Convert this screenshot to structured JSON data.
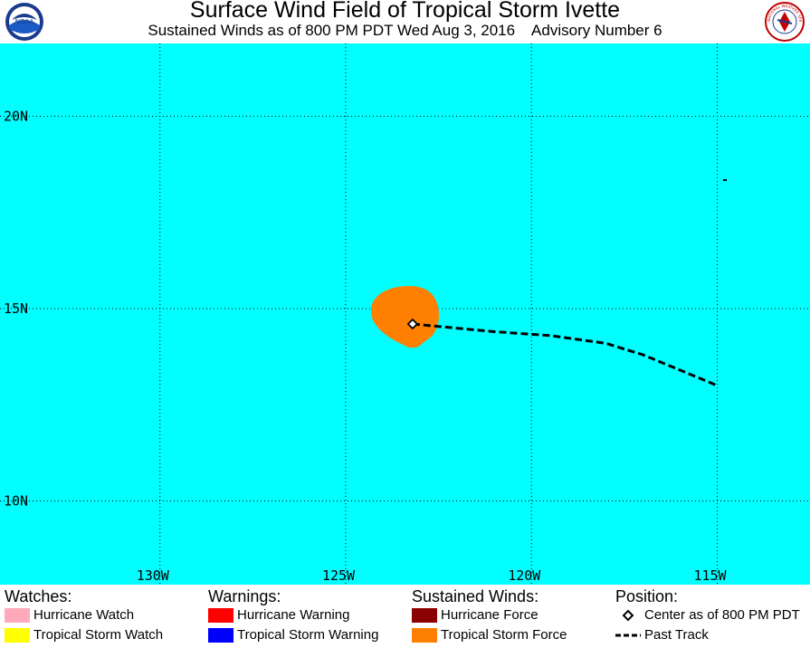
{
  "header": {
    "title": "Surface Wind Field of Tropical Storm Ivette",
    "subtitle": "Sustained Winds as of 800 PM PDT Wed Aug 3, 2016    Advisory Number 6",
    "noaa_logo_text": "NOAA",
    "nws_logo_text": "NATIONAL WEATHER SERVICE"
  },
  "map": {
    "background_color": "#00ffff",
    "lat_labels": [
      "20N",
      "15N",
      "10N"
    ],
    "lon_labels": [
      "130W",
      "125W",
      "120W",
      "115W"
    ],
    "storm_center": {
      "lat": 14.6,
      "lon": -123.2
    },
    "tropical_storm_force_color": "#ff8000",
    "past_track": [
      {
        "lat": 14.6,
        "lon": -123.2
      },
      {
        "lat": 14.4,
        "lon": -121.0
      },
      {
        "lat": 14.3,
        "lon": -119.5
      },
      {
        "lat": 14.1,
        "lon": -118.0
      },
      {
        "lat": 13.8,
        "lon": -117.0
      },
      {
        "lat": 13.4,
        "lon": -116.0
      },
      {
        "lat": 13.0,
        "lon": -115.0
      }
    ]
  },
  "legend": {
    "watches": {
      "heading": "Watches:",
      "items": [
        {
          "label": "Hurricane Watch",
          "color": "#ffaabb"
        },
        {
          "label": "Tropical Storm Watch",
          "color": "#ffff00"
        }
      ]
    },
    "warnings": {
      "heading": "Warnings:",
      "items": [
        {
          "label": "Hurricane Warning",
          "color": "#ff0000"
        },
        {
          "label": "Tropical Storm Warning",
          "color": "#0000ff"
        }
      ]
    },
    "winds": {
      "heading": "Sustained Winds:",
      "items": [
        {
          "label": "Hurricane Force",
          "color": "#8b0000"
        },
        {
          "label": "Tropical Storm Force",
          "color": "#ff8000"
        }
      ]
    },
    "position": {
      "heading": "Position:",
      "center_label": "Center as of 800 PM PDT",
      "track_label": "Past Track"
    }
  }
}
